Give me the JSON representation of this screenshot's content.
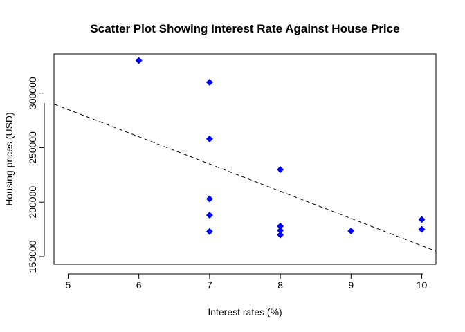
{
  "chart_data": {
    "type": "scatter",
    "title": "Scatter Plot Showing Interest Rate Against House Price",
    "xlabel": "Interest rates (%)",
    "ylabel": "Housing prices (USD)",
    "xlim": [
      4.8,
      10.2
    ],
    "ylim": [
      143000,
      336000
    ],
    "x_ticks": [
      5,
      6,
      7,
      8,
      9,
      10
    ],
    "y_ticks": [
      150000,
      200000,
      250000,
      300000
    ],
    "grid": false,
    "legend": "none",
    "marker": "filled-diamond",
    "point_color": "#0000ff",
    "points": [
      {
        "x": 6,
        "y": 330000
      },
      {
        "x": 7,
        "y": 310000
      },
      {
        "x": 7,
        "y": 258000
      },
      {
        "x": 7,
        "y": 203000
      },
      {
        "x": 7,
        "y": 188000
      },
      {
        "x": 7,
        "y": 173000
      },
      {
        "x": 8,
        "y": 230000
      },
      {
        "x": 8,
        "y": 178000
      },
      {
        "x": 8,
        "y": 174000
      },
      {
        "x": 8,
        "y": 170000
      },
      {
        "x": 9,
        "y": 173500
      },
      {
        "x": 10,
        "y": 184000
      },
      {
        "x": 10,
        "y": 175000
      }
    ],
    "trend_line": {
      "style": "dashed",
      "intercept": 410000,
      "slope": -25000
    }
  }
}
